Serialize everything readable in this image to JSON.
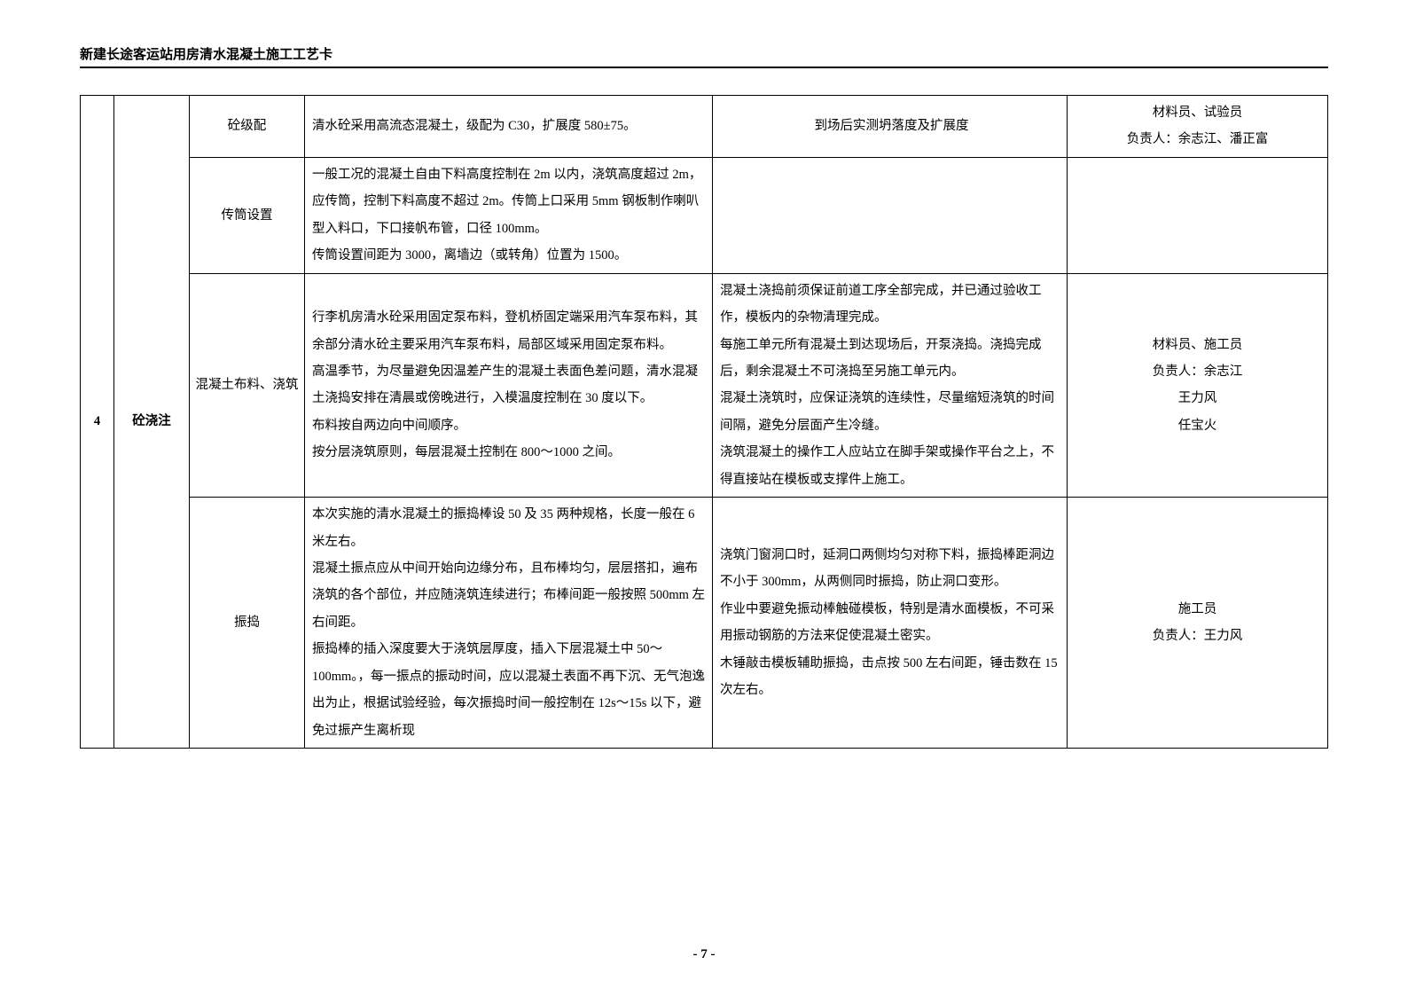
{
  "header": "新建长途客运站用房清水混凝土施工工艺卡",
  "page_number": "- 7 -",
  "row_index": "4",
  "step_name": "砼浇注",
  "rows": [
    {
      "sub": "砼级配",
      "method": "清水砼采用高流态混凝土，级配为 C30，扩展度 580±75。",
      "note": "到场后实测坍落度及扩展度",
      "resp": "材料员、试验员\n负责人：余志江、潘正富"
    },
    {
      "sub": "传筒设置",
      "method": "一般工况的混凝土自由下料高度控制在 2m 以内，浇筑高度超过 2m，应传筒，控制下料高度不超过 2m。传筒上口采用 5mm 钢板制作喇叭型入料口，下口接帆布管，口径 100mm。\n传筒设置间距为 3000，离墙边（或转角）位置为 1500。",
      "note": "",
      "resp": ""
    },
    {
      "sub": "混凝土布料、浇筑",
      "method": "行李机房清水砼采用固定泵布料，登机桥固定端采用汽车泵布料，其余部分清水砼主要采用汽车泵布料，局部区域采用固定泵布料。\n高温季节，为尽量避免因温差产生的混凝土表面色差问题，清水混凝土浇捣安排在清晨或傍晚进行，入模温度控制在 30 度以下。\n布料按自两边向中间顺序。\n按分层浇筑原则，每层混凝土控制在 800～1000 之间。",
      "note": "混凝土浇捣前须保证前道工序全部完成，并已通过验收工作，模板内的杂物清理完成。\n每施工单元所有混凝土到达现场后，开泵浇捣。浇捣完成后，剩余混凝土不可浇捣至另施工单元内。\n混凝土浇筑时，应保证浇筑的连续性，尽量缩短浇筑的时间间隔，避免分层面产生冷缝。\n浇筑混凝土的操作工人应站立在脚手架或操作平台之上，不得直接站在模板或支撑件上施工。",
      "resp": "材料员、施工员\n负责人：余志江\n王力风\n任宝火"
    },
    {
      "sub": "振捣",
      "method": "本次实施的清水混凝土的振捣棒设 50 及 35 两种规格，长度一般在 6 米左右。\n混凝土振点应从中间开始向边缘分布，且布棒均匀，层层搭扣，遍布浇筑的各个部位，并应随浇筑连续进行；布棒间距一般按照 500mm 左右间距。\n振捣棒的插入深度要大于浇筑层厚度，插入下层混凝土中 50～100mm。，每一振点的振动时间，应以混凝土表面不再下沉、无气泡逸出为止，根据试验经验，每次振捣时间一般控制在 12s～15s 以下，避免过振产生离析现",
      "note": "浇筑门窗洞口时，延洞口两侧均匀对称下料，振捣棒距洞边不小于 300mm，从两侧同时振捣，防止洞口变形。\n作业中要避免振动棒触碰模板，特别是清水面模板，不可采用振动钢筋的方法来促使混凝土密实。\n木锤敲击模板辅助振捣，击点按 500 左右间距，锤击数在 15 次左右。",
      "resp": "施工员\n负责人：王力风"
    }
  ]
}
